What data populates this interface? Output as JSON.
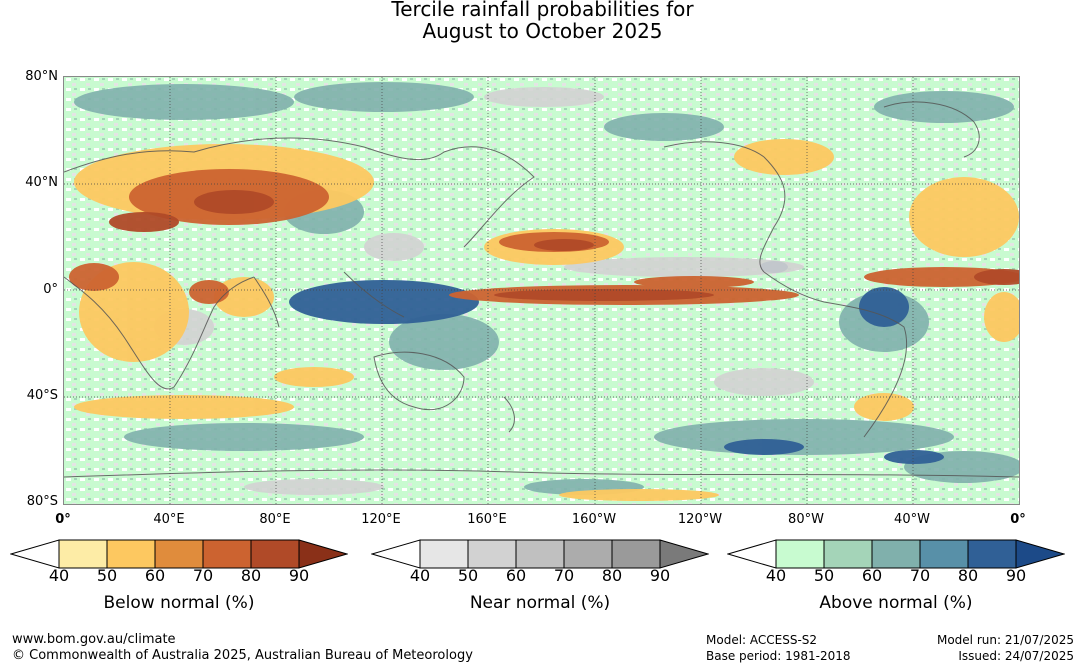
{
  "title": {
    "line1": "Tercile rainfall probabilities for",
    "line2": "August to October 2025"
  },
  "map": {
    "lat_labels": [
      "80°N",
      "40°N",
      "0°",
      "40°S",
      "80°S"
    ],
    "lon_labels": [
      "0°",
      "40°E",
      "80°E",
      "120°E",
      "160°E",
      "160°W",
      "120°W",
      "80°W",
      "40°W",
      "0°"
    ]
  },
  "legends": [
    {
      "title": "Below normal (%)",
      "ticks": [
        "40",
        "50",
        "60",
        "70",
        "80",
        "90"
      ],
      "colors": [
        "#ffffff",
        "#fdeca6",
        "#fdc860",
        "#e08c3c",
        "#cc6330",
        "#b04a28",
        "#8a3018"
      ]
    },
    {
      "title": "Near normal (%)",
      "ticks": [
        "40",
        "50",
        "60",
        "70",
        "80",
        "90"
      ],
      "colors": [
        "#ffffff",
        "#e6e6e6",
        "#d2d2d2",
        "#c0c0c0",
        "#acacac",
        "#9a9a9a",
        "#7a7a7a"
      ]
    },
    {
      "title": "Above normal (%)",
      "ticks": [
        "40",
        "50",
        "60",
        "70",
        "80",
        "90"
      ],
      "colors": [
        "#ffffff",
        "#c8fbd0",
        "#a4d4b8",
        "#80b0ac",
        "#5890a8",
        "#306096",
        "#1c4a88"
      ]
    }
  ],
  "footer": {
    "url": "www.bom.gov.au/climate",
    "copyright": "© Commonwealth of Australia 2025, Australian Bureau of Meteorology",
    "model": "Model: ACCESS-S2",
    "base_period": "Base period: 1981-2018",
    "model_run": "Model run: 21/07/2025",
    "issued": "Issued: 24/07/2025"
  }
}
